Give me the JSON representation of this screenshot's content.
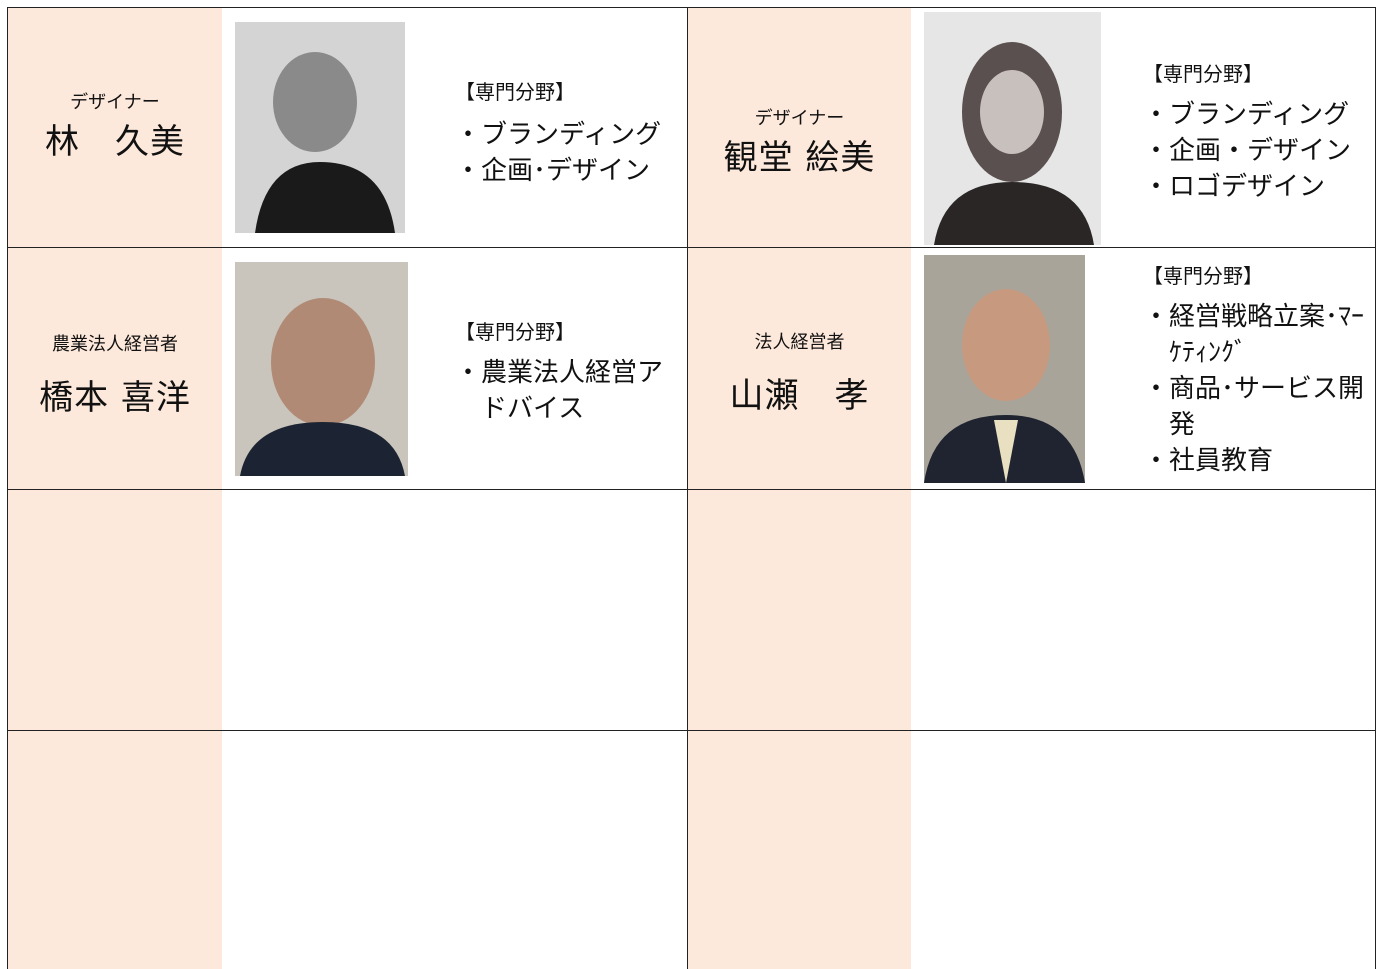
{
  "people": [
    {
      "role": "デザイナー",
      "name": "林　久美",
      "field_heading": "【専門分野】",
      "fields": [
        "・ブランディング",
        "・企画･デザイン"
      ]
    },
    {
      "role": "デザイナー",
      "name": "観堂 絵美",
      "field_heading": "【専門分野】",
      "fields": [
        "・ブランディング",
        "・企画・デザイン",
        "・ロゴデザイン"
      ]
    },
    {
      "role": "農業法人経営者",
      "name": "橋本 喜洋",
      "field_heading": "【専門分野】",
      "fields": [
        "・農業法人経営アドバイス"
      ]
    },
    {
      "role": "法人経営者",
      "name": "山瀬　孝",
      "field_heading": "【専門分野】",
      "fields": [
        "・経営戦略立案･ﾏｰｹﾃｨﾝｸﾞ",
        "・商品･サービス開発",
        "・社員教育"
      ]
    }
  ]
}
